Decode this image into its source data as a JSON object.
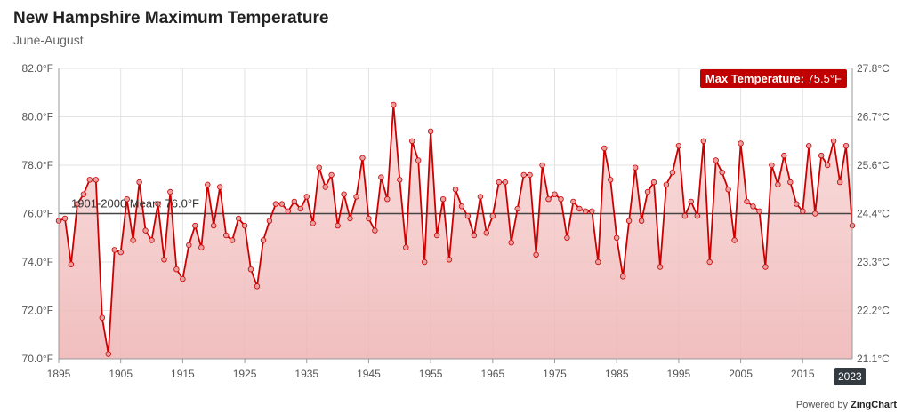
{
  "header": {
    "title": "New Hampshire Maximum Temperature",
    "subtitle": "June-August"
  },
  "badge": {
    "label": "Max Temperature:",
    "value": "75.5°F"
  },
  "mean_label": "1901-2000 Mean: 76.0°F",
  "last_year_label": "2023",
  "footer": {
    "powered_by": "Powered by",
    "brand": "ZingChart"
  },
  "colors": {
    "line": "#cc0000",
    "marker": "#e8a0a0",
    "fill_top": "#f9d9d9",
    "fill_bottom": "#eeb3b3",
    "mean_line": "#444444",
    "badge": "#c00000"
  },
  "chart_data": {
    "type": "area",
    "x_start": 1895,
    "x_end": 2023,
    "ylim": [
      70,
      82
    ],
    "y2lim": [
      21.1,
      27.8
    ],
    "mean": 76.0,
    "y_ticks": [
      "70.0°F",
      "72.0°F",
      "74.0°F",
      "76.0°F",
      "78.0°F",
      "80.0°F",
      "82.0°F"
    ],
    "y2_ticks": [
      "21.1°C",
      "22.2°C",
      "23.3°C",
      "24.4°C",
      "25.6°C",
      "26.7°C",
      "27.8°C"
    ],
    "x_ticks": [
      "1895",
      "1905",
      "1915",
      "1925",
      "1935",
      "1945",
      "1955",
      "1965",
      "1975",
      "1985",
      "1995",
      "2005",
      "2015"
    ],
    "years": [
      1895,
      1896,
      1897,
      1898,
      1899,
      1900,
      1901,
      1902,
      1903,
      1904,
      1905,
      1906,
      1907,
      1908,
      1909,
      1910,
      1911,
      1912,
      1913,
      1914,
      1915,
      1916,
      1917,
      1918,
      1919,
      1920,
      1921,
      1922,
      1923,
      1924,
      1925,
      1926,
      1927,
      1928,
      1929,
      1930,
      1931,
      1932,
      1933,
      1934,
      1935,
      1936,
      1937,
      1938,
      1939,
      1940,
      1941,
      1942,
      1943,
      1944,
      1945,
      1946,
      1947,
      1948,
      1949,
      1950,
      1951,
      1952,
      1953,
      1954,
      1955,
      1956,
      1957,
      1958,
      1959,
      1960,
      1961,
      1962,
      1963,
      1964,
      1965,
      1966,
      1967,
      1968,
      1969,
      1970,
      1971,
      1972,
      1973,
      1974,
      1975,
      1976,
      1977,
      1978,
      1979,
      1980,
      1981,
      1982,
      1983,
      1984,
      1985,
      1986,
      1987,
      1988,
      1989,
      1990,
      1991,
      1992,
      1993,
      1994,
      1995,
      1996,
      1997,
      1998,
      1999,
      2000,
      2001,
      2002,
      2003,
      2004,
      2005,
      2006,
      2007,
      2008,
      2009,
      2010,
      2011,
      2012,
      2013,
      2014,
      2015,
      2016,
      2017,
      2018,
      2019,
      2020,
      2021,
      2022,
      2023
    ],
    "values": [
      75.7,
      75.8,
      73.9,
      76.4,
      76.8,
      77.4,
      77.4,
      71.7,
      70.2,
      74.5,
      74.4,
      76.6,
      74.9,
      77.3,
      75.3,
      74.9,
      76.4,
      74.1,
      76.9,
      73.7,
      73.3,
      74.7,
      75.5,
      74.6,
      77.2,
      75.5,
      77.1,
      75.1,
      74.9,
      75.8,
      75.5,
      73.7,
      73.0,
      74.9,
      75.7,
      76.4,
      76.4,
      76.1,
      76.5,
      76.2,
      76.7,
      75.6,
      77.9,
      77.1,
      77.6,
      75.5,
      76.8,
      75.8,
      76.7,
      78.3,
      75.8,
      75.3,
      77.5,
      76.6,
      80.5,
      77.4,
      74.6,
      79.0,
      78.2,
      74.0,
      79.4,
      75.1,
      76.6,
      74.1,
      77.0,
      76.3,
      75.9,
      75.1,
      76.7,
      75.2,
      75.9,
      77.3,
      77.3,
      74.8,
      76.2,
      77.6,
      77.6,
      74.3,
      78.0,
      76.6,
      76.8,
      76.6,
      75.0,
      76.5,
      76.2,
      76.1,
      76.1,
      74.0,
      78.7,
      77.4,
      75.0,
      73.4,
      75.7,
      77.9,
      75.7,
      76.9,
      77.3,
      73.8,
      77.2,
      77.7,
      78.8,
      75.9,
      76.5,
      75.9,
      79.0,
      74.0,
      78.2,
      77.7,
      77.0,
      74.9,
      78.9,
      76.5,
      76.3,
      76.1,
      73.8,
      78.0,
      77.2,
      78.4,
      77.3,
      76.4,
      76.1,
      78.8,
      76.0,
      78.4,
      78.0,
      79.0,
      77.3,
      78.8,
      75.5
    ]
  }
}
